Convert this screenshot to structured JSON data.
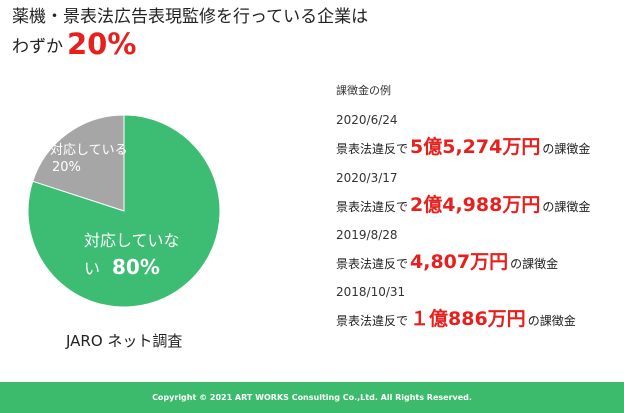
{
  "headline": {
    "line1": "薬機・景表法広告表現監修を行っている企業は",
    "line2_prefix": "わずか",
    "line2_percent": "20%"
  },
  "chart_data": {
    "type": "pie",
    "slices": [
      {
        "label": "対応している",
        "value": 20,
        "value_label": "20%",
        "color": "#a6a6a6"
      },
      {
        "label": "対応していない",
        "value": 80,
        "value_label": "80%",
        "color": "#3dbd73"
      }
    ],
    "slice_label_lines": {
      "gray": [
        "対応している",
        "20%"
      ],
      "green_line1": "対応していな",
      "green_line2": "い",
      "green_value": "80%"
    },
    "source": "JARO ネット調査"
  },
  "fines": {
    "title": "課徴金の例",
    "items": [
      {
        "date": "2020/6/24",
        "prefix": "景表法違反で",
        "amount": "5億5,274万円",
        "suffix": "の課徴金"
      },
      {
        "date": "2020/3/17",
        "prefix": "景表法違反で",
        "amount": "2億4,988万円",
        "suffix": "の課徴金"
      },
      {
        "date": "2019/8/28",
        "prefix": "景表法違反で",
        "amount": "4,807万円",
        "suffix": "の課徴金"
      },
      {
        "date": "2018/10/31",
        "prefix": "景表法違反で",
        "amount": "１億886万円",
        "suffix": "の課徴金"
      }
    ]
  },
  "footer": {
    "copyright": "Copyright © 2021 ART WORKS Consulting Co.,Ltd. All Rights Reserved."
  }
}
